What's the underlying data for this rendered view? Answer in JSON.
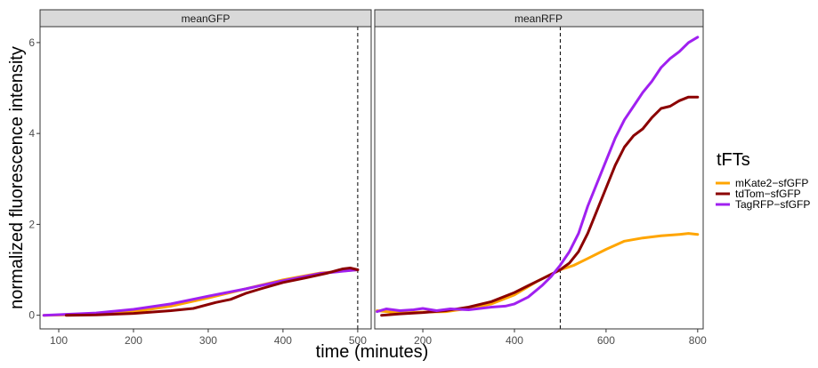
{
  "chart_data": {
    "type": "line",
    "xlabel": "time (minutes)",
    "ylabel": "normalized fluorescence intensity",
    "yticks": [
      0,
      2,
      4,
      6
    ],
    "ylim": [
      -0.3,
      6.35
    ],
    "legend": {
      "title": "tFTs",
      "placement": "right",
      "entries": [
        {
          "label": "mKate2−sfGFP",
          "color": "#FFA500"
        },
        {
          "label": "tdTom−sfGFP",
          "color": "#8B0000"
        },
        {
          "label": "TagRFP−sfGFP",
          "color": "#A020F0"
        }
      ]
    },
    "panels": [
      {
        "strip": "meanGFP",
        "xlim": [
          75,
          518
        ],
        "xticks": [
          100,
          200,
          300,
          400,
          500
        ],
        "vline_x": 500,
        "series": [
          {
            "name": "mKate2−sfGFP",
            "color": "#FFA500",
            "points": [
              [
                80,
                0
              ],
              [
                150,
                0.02
              ],
              [
                200,
                0.08
              ],
              [
                250,
                0.2
              ],
              [
                300,
                0.38
              ],
              [
                350,
                0.58
              ],
              [
                400,
                0.78
              ],
              [
                450,
                0.93
              ],
              [
                500,
                1.0
              ]
            ]
          },
          {
            "name": "TagRFP−sfGFP",
            "color": "#A020F0",
            "points": [
              [
                80,
                0
              ],
              [
                150,
                0.05
              ],
              [
                200,
                0.13
              ],
              [
                250,
                0.25
              ],
              [
                300,
                0.42
              ],
              [
                350,
                0.58
              ],
              [
                400,
                0.76
              ],
              [
                450,
                0.92
              ],
              [
                500,
                1.0
              ]
            ]
          },
          {
            "name": "tdTom−sfGFP",
            "color": "#8B0000",
            "points": [
              [
                110,
                0
              ],
              [
                150,
                0.01
              ],
              [
                200,
                0.04
              ],
              [
                250,
                0.1
              ],
              [
                280,
                0.15
              ],
              [
                310,
                0.28
              ],
              [
                330,
                0.35
              ],
              [
                350,
                0.48
              ],
              [
                370,
                0.58
              ],
              [
                400,
                0.72
              ],
              [
                430,
                0.82
              ],
              [
                460,
                0.93
              ],
              [
                480,
                1.02
              ],
              [
                490,
                1.04
              ],
              [
                500,
                1.0
              ]
            ]
          }
        ]
      },
      {
        "strip": "meanRFP",
        "xlim": [
          95,
          812
        ],
        "xticks": [
          200,
          400,
          600,
          800
        ],
        "vline_x": 500,
        "series": [
          {
            "name": "mKate2−sfGFP",
            "color": "#FFA500",
            "points": [
              [
                100,
                0.1
              ],
              [
                150,
                0.05
              ],
              [
                200,
                0.07
              ],
              [
                250,
                0.08
              ],
              [
                300,
                0.15
              ],
              [
                350,
                0.25
              ],
              [
                400,
                0.45
              ],
              [
                450,
                0.75
              ],
              [
                500,
                1.0
              ],
              [
                530,
                1.1
              ],
              [
                560,
                1.25
              ],
              [
                600,
                1.45
              ],
              [
                640,
                1.63
              ],
              [
                680,
                1.7
              ],
              [
                720,
                1.75
              ],
              [
                760,
                1.78
              ],
              [
                780,
                1.8
              ],
              [
                800,
                1.78
              ]
            ]
          },
          {
            "name": "tdTom−sfGFP",
            "color": "#8B0000",
            "points": [
              [
                110,
                0
              ],
              [
                150,
                0.03
              ],
              [
                200,
                0.06
              ],
              [
                250,
                0.1
              ],
              [
                300,
                0.18
              ],
              [
                350,
                0.3
              ],
              [
                400,
                0.5
              ],
              [
                430,
                0.65
              ],
              [
                460,
                0.8
              ],
              [
                500,
                1.0
              ],
              [
                520,
                1.15
              ],
              [
                540,
                1.4
              ],
              [
                560,
                1.8
              ],
              [
                580,
                2.3
              ],
              [
                600,
                2.8
              ],
              [
                620,
                3.3
              ],
              [
                640,
                3.7
              ],
              [
                660,
                3.95
              ],
              [
                680,
                4.1
              ],
              [
                700,
                4.35
              ],
              [
                720,
                4.55
              ],
              [
                740,
                4.6
              ],
              [
                760,
                4.72
              ],
              [
                780,
                4.8
              ],
              [
                800,
                4.8
              ]
            ]
          },
          {
            "name": "TagRFP−sfGFP",
            "color": "#A020F0",
            "points": [
              [
                100,
                0.08
              ],
              [
                120,
                0.14
              ],
              [
                150,
                0.1
              ],
              [
                180,
                0.12
              ],
              [
                200,
                0.15
              ],
              [
                230,
                0.1
              ],
              [
                260,
                0.14
              ],
              [
                300,
                0.12
              ],
              [
                350,
                0.18
              ],
              [
                380,
                0.2
              ],
              [
                400,
                0.25
              ],
              [
                430,
                0.4
              ],
              [
                460,
                0.65
              ],
              [
                480,
                0.85
              ],
              [
                500,
                1.1
              ],
              [
                520,
                1.4
              ],
              [
                540,
                1.8
              ],
              [
                560,
                2.4
              ],
              [
                580,
                2.9
              ],
              [
                600,
                3.4
              ],
              [
                620,
                3.9
              ],
              [
                640,
                4.3
              ],
              [
                660,
                4.6
              ],
              [
                680,
                4.9
              ],
              [
                700,
                5.15
              ],
              [
                720,
                5.45
              ],
              [
                740,
                5.65
              ],
              [
                760,
                5.8
              ],
              [
                780,
                6.0
              ],
              [
                800,
                6.12
              ]
            ]
          }
        ]
      }
    ]
  }
}
